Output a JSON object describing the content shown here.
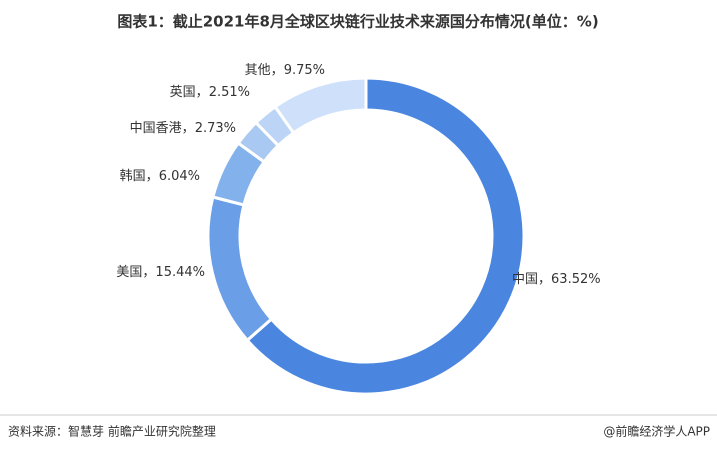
{
  "chart_data": {
    "type": "pie",
    "title": "图表1：截止2021年8月全球区块链行业技术来源国分布情况(单位：%)",
    "categories": [
      "中国",
      "美国",
      "韩国",
      "中国香港",
      "英国",
      "其他"
    ],
    "values": [
      63.52,
      15.44,
      6.04,
      2.73,
      2.51,
      9.75
    ],
    "value_labels": [
      "63.52%",
      "15.44%",
      "6.04%",
      "2.73%",
      "2.51%",
      "9.75%"
    ],
    "label_separator": "，",
    "colors": [
      "#4a86e0",
      "#6a9ee6",
      "#82b1ec",
      "#a9c9f2",
      "#bcd5f6",
      "#cfe1fa"
    ],
    "source": "资料来源：智慧芽 前瞻产业研究院整理",
    "brand": "@前瞻经济学人APP"
  }
}
